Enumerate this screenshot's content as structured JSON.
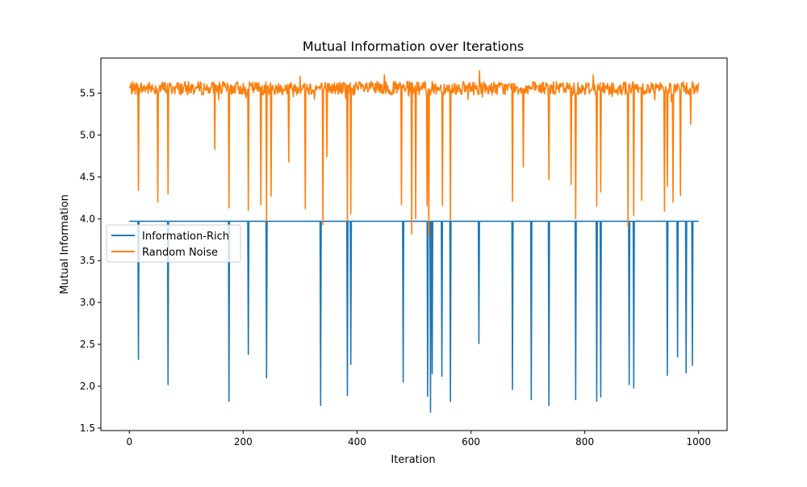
{
  "chart_data": {
    "type": "line",
    "title": "Mutual Information over Iterations",
    "xlabel": "Iteration",
    "ylabel": "Mutual Information",
    "xlim": [
      -50,
      1050
    ],
    "ylim": [
      1.47,
      5.92
    ],
    "xticks": [
      0,
      200,
      400,
      600,
      800,
      1000
    ],
    "yticks": [
      1.5,
      2.0,
      2.5,
      3.0,
      3.5,
      4.0,
      4.5,
      5.0,
      5.5
    ],
    "grid": false,
    "legend_position": "center-left",
    "series": [
      {
        "name": "Information-Rich",
        "color": "#1f77b4",
        "x_range": [
          0,
          1000
        ],
        "baseline": 3.97,
        "dips": [
          [
            16,
            2.32
          ],
          [
            68,
            2.02
          ],
          [
            175,
            1.82
          ],
          [
            209,
            2.38
          ],
          [
            241,
            2.1
          ],
          [
            336,
            1.77
          ],
          [
            383,
            1.89
          ],
          [
            389,
            2.26
          ],
          [
            481,
            2.05
          ],
          [
            524,
            1.88
          ],
          [
            529,
            1.69
          ],
          [
            532,
            2.15
          ],
          [
            549,
            2.12
          ],
          [
            564,
            1.82
          ],
          [
            614,
            2.51
          ],
          [
            673,
            1.96
          ],
          [
            706,
            1.84
          ],
          [
            737,
            1.77
          ],
          [
            784,
            1.84
          ],
          [
            821,
            1.82
          ],
          [
            828,
            1.87
          ],
          [
            878,
            2.02
          ],
          [
            886,
            1.98
          ],
          [
            945,
            2.13
          ],
          [
            963,
            2.35
          ],
          [
            978,
            2.16
          ],
          [
            989,
            2.25
          ]
        ]
      },
      {
        "name": "Random Noise",
        "color": "#ff7f0e",
        "x_range": [
          0,
          1000
        ],
        "mean": 5.56,
        "noise_amplitude": 0.08,
        "dips": [
          [
            16,
            4.34
          ],
          [
            50,
            4.2
          ],
          [
            68,
            4.3
          ],
          [
            150,
            4.83
          ],
          [
            175,
            4.13
          ],
          [
            209,
            4.1
          ],
          [
            231,
            4.17
          ],
          [
            241,
            3.97
          ],
          [
            249,
            4.27
          ],
          [
            280,
            4.68
          ],
          [
            309,
            4.12
          ],
          [
            340,
            3.93
          ],
          [
            347,
            4.74
          ],
          [
            383,
            3.97
          ],
          [
            389,
            4.06
          ],
          [
            478,
            4.17
          ],
          [
            496,
            3.82
          ],
          [
            503,
            4.0
          ],
          [
            523,
            4.16
          ],
          [
            526,
            3.79
          ],
          [
            550,
            4.16
          ],
          [
            564,
            3.98
          ],
          [
            615,
            4.08
          ],
          [
            673,
            4.21
          ],
          [
            692,
            4.62
          ],
          [
            737,
            4.47
          ],
          [
            776,
            4.41
          ],
          [
            784,
            4.0
          ],
          [
            821,
            4.15
          ],
          [
            828,
            4.32
          ],
          [
            876,
            3.91
          ],
          [
            886,
            4.04
          ],
          [
            900,
            4.22
          ],
          [
            940,
            4.09
          ],
          [
            945,
            4.39
          ],
          [
            955,
            4.2
          ],
          [
            968,
            4.28
          ],
          [
            986,
            5.13
          ]
        ],
        "peaks": [
          [
            615,
            5.77
          ],
          [
            300,
            5.7
          ],
          [
            448,
            5.72
          ],
          [
            815,
            5.72
          ]
        ]
      }
    ]
  }
}
